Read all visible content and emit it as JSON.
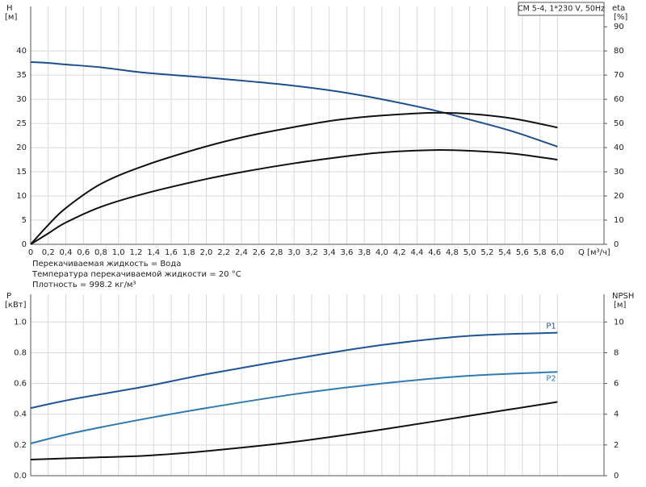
{
  "chart_data": [
    {
      "type": "line",
      "y_label": "H",
      "y_unit": "[м]",
      "y2_label": "eta",
      "y2_unit": "[%]",
      "title": "CM 5-4, 1*230 V, 50Hz",
      "xlabel": "Q [м³/ч]",
      "notes": [
        "Перекачиваемая жидкость = Вода",
        "Температура перекачиваемой жидкости = 20 °C",
        "Плотность = 998.2 кг/м³"
      ],
      "xlim": [
        0,
        6.53
      ],
      "ylim": [
        0,
        49.2
      ],
      "y2lim": [
        0,
        98.4
      ],
      "xticks": [
        0,
        {
          "value": 0.2,
          "label": "0,2"
        },
        {
          "value": 0.4,
          "label": "0,4"
        },
        {
          "value": 0.6,
          "label": "0,6"
        },
        {
          "value": 0.8,
          "label": "0,8"
        },
        {
          "value": 1,
          "label": "1,0"
        },
        {
          "value": 1.2,
          "label": "1,2"
        },
        {
          "value": 1.4,
          "label": "1,4"
        },
        {
          "value": 1.6,
          "label": "1,6"
        },
        {
          "value": 1.8,
          "label": "1,8"
        },
        {
          "value": 2,
          "label": "2,0"
        },
        {
          "value": 2.2,
          "label": "2,2"
        },
        {
          "value": 2.4,
          "label": "2,4"
        },
        {
          "value": 2.6,
          "label": "2,6"
        },
        {
          "value": 2.8,
          "label": "2,8"
        },
        {
          "value": 3,
          "label": "3,0"
        },
        {
          "value": 3.2,
          "label": "3,2"
        },
        {
          "value": 3.4,
          "label": "3,4"
        },
        {
          "value": 3.6,
          "label": "3,6"
        },
        {
          "value": 3.8,
          "label": "3,8"
        },
        {
          "value": 4,
          "label": "4,0"
        },
        {
          "value": 4.2,
          "label": "4,2"
        },
        {
          "value": 4.4,
          "label": "4,4"
        },
        {
          "value": 4.6,
          "label": "4,6"
        },
        {
          "value": 4.8,
          "label": "4,8"
        },
        {
          "value": 5,
          "label": "5,0"
        },
        {
          "value": 5.2,
          "label": "5,2"
        },
        {
          "value": 5.4,
          "label": "5,4"
        },
        {
          "value": 5.6,
          "label": "5,6"
        },
        {
          "value": 5.8,
          "label": "5,8"
        },
        {
          "value": 6,
          "label": "6,0"
        }
      ],
      "yticks": [
        0,
        5,
        10,
        15,
        20,
        25,
        30,
        35,
        40
      ],
      "y2ticks": [
        0,
        10,
        20,
        30,
        40,
        50,
        60,
        70,
        80,
        90
      ],
      "grid": true,
      "x": [
        0,
        0.2,
        0.4,
        0.8,
        1.3,
        2,
        2.5,
        3,
        3.5,
        4,
        4.6,
        5,
        5.5,
        6
      ],
      "series": [
        {
          "color": "#1f4e8c",
          "values": [
            37.7,
            37.5,
            37.2,
            36.6,
            35.5,
            34.5,
            33.7,
            32.8,
            31.6,
            30.0,
            27.7,
            25.8,
            23.3,
            20.2
          ]
        },
        {
          "color": "#111111",
          "axis": "y2",
          "values": [
            0,
            8,
            15,
            25,
            32.6,
            40.5,
            45,
            48.5,
            51.5,
            53.3,
            54.4,
            54,
            52,
            48.3
          ]
        },
        {
          "color": "#111111",
          "axis": "y2",
          "values": [
            0,
            4.5,
            9,
            15.5,
            21,
            27,
            30.5,
            33.5,
            36,
            38,
            39,
            38.7,
            37.5,
            35
          ]
        }
      ]
    },
    {
      "type": "line",
      "y_label": "P",
      "y_unit": "[кВт]",
      "y2_label": "NPSH",
      "y2_unit": "[м]",
      "xlim": [
        0,
        6.53
      ],
      "ylim": [
        0,
        1.18
      ],
      "y2lim": [
        0,
        11.8
      ],
      "xticks": [
        0,
        0.2,
        0.4,
        0.6,
        0.8,
        1,
        1.2,
        1.4,
        1.6,
        1.8,
        2,
        2.2,
        2.4,
        2.6,
        2.8,
        3,
        3.2,
        3.4,
        3.6,
        3.8,
        4,
        4.2,
        4.4,
        4.6,
        4.8,
        5,
        5.2,
        5.4,
        5.6,
        5.8,
        6
      ],
      "yticks": [
        {
          "value": 0,
          "label": "0.0"
        },
        0.2,
        0.4,
        0.6,
        0.8,
        {
          "value": 1,
          "label": "1.0"
        }
      ],
      "y2ticks": [
        0,
        2,
        4,
        6,
        8,
        10
      ],
      "grid": true,
      "x": [
        0,
        0.5,
        1.3,
        2,
        3,
        4,
        5,
        6
      ],
      "series": [
        {
          "name": "P1",
          "color": "#1f5596",
          "values": [
            0.44,
            0.5,
            0.58,
            0.66,
            0.76,
            0.85,
            0.91,
            0.93
          ]
        },
        {
          "name": "P2",
          "color": "#2f7ab0",
          "values": [
            0.21,
            0.28,
            0.37,
            0.44,
            0.53,
            0.6,
            0.65,
            0.675
          ]
        },
        {
          "color": "#111111",
          "axis": "y2",
          "values": [
            1.05,
            1.15,
            1.3,
            1.6,
            2.2,
            3.0,
            3.9,
            4.8
          ]
        }
      ]
    }
  ]
}
